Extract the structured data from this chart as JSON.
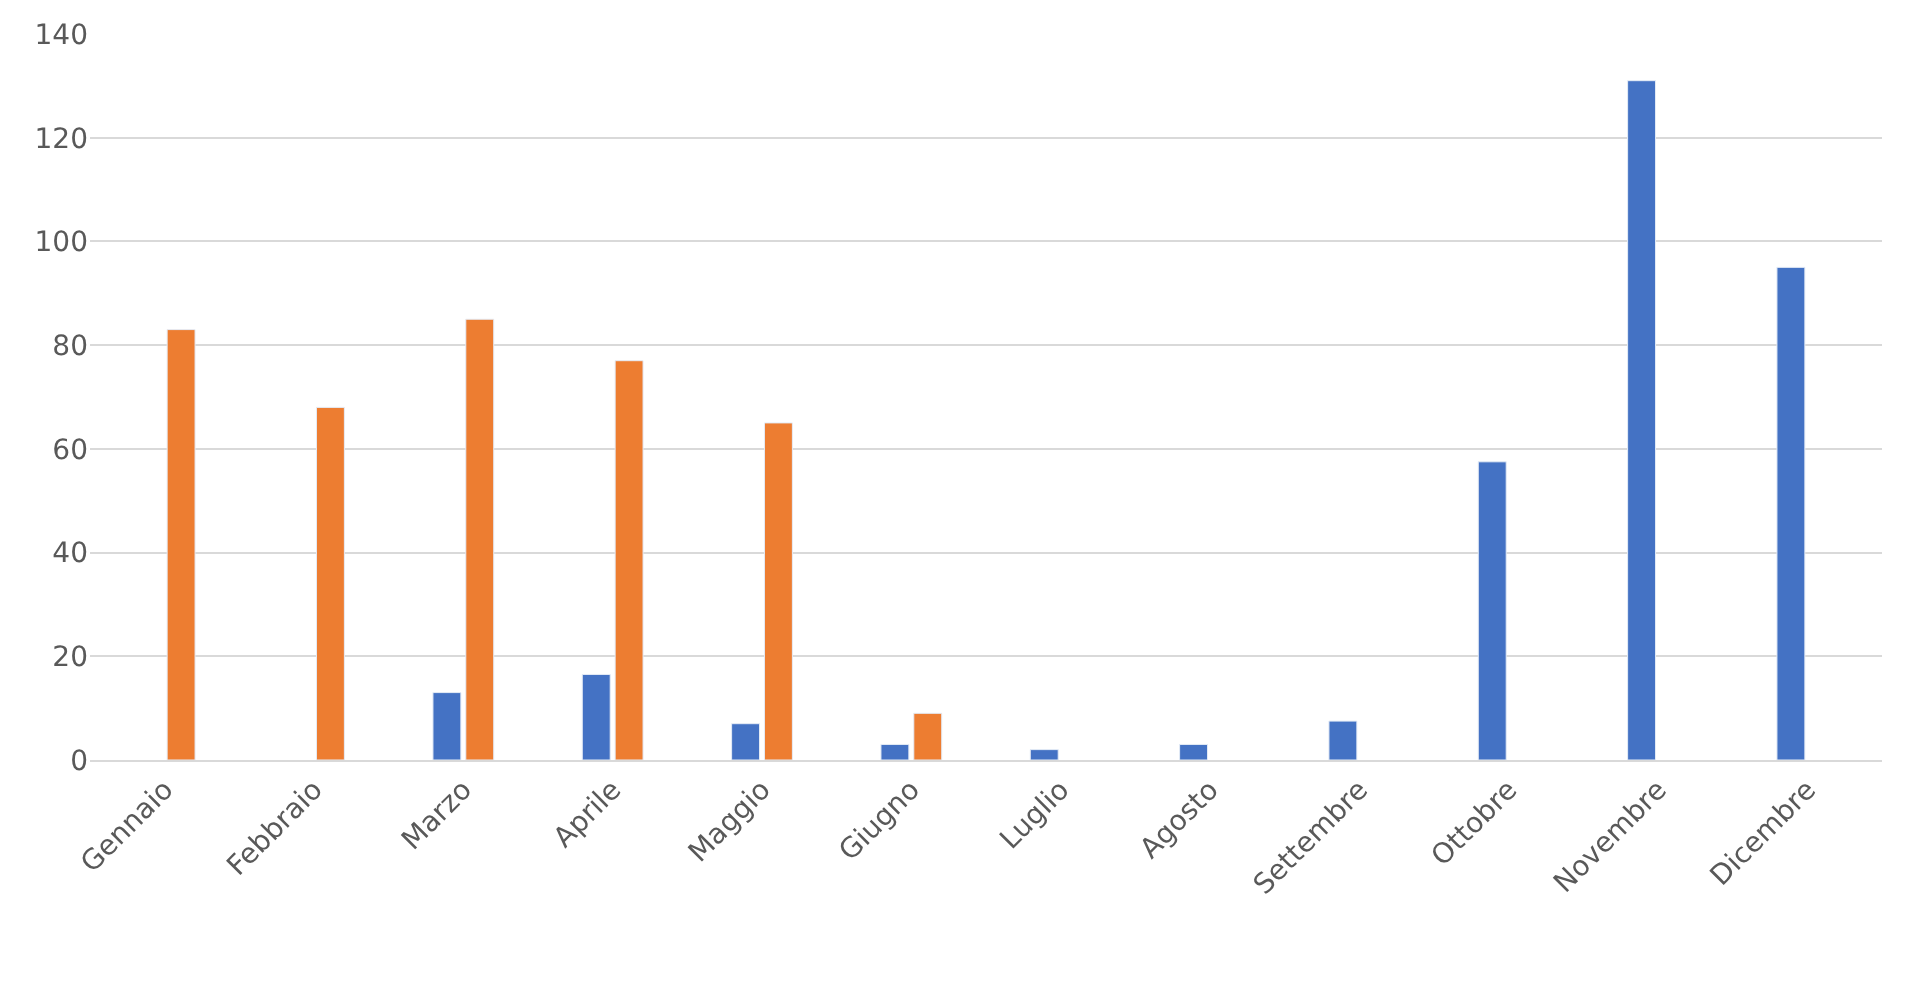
{
  "chart_data": {
    "type": "bar",
    "categories": [
      "Gennaio",
      "Febbraio",
      "Marzo",
      "Aprile",
      "Maggio",
      "Giugno",
      "Luglio",
      "Agosto",
      "Settembre",
      "Ottobre",
      "Novembre",
      "Dicembre"
    ],
    "series": [
      {
        "color": "#4472c4",
        "values": [
          null,
          null,
          13,
          16.5,
          7,
          3,
          2,
          3,
          7.5,
          57.5,
          131,
          95
        ]
      },
      {
        "color": "#ed7d31",
        "values": [
          83,
          68,
          85,
          77,
          65,
          9,
          null,
          null,
          null,
          null,
          null,
          null
        ]
      }
    ],
    "ylim": [
      0,
      140
    ],
    "yticks": [
      0,
      20,
      40,
      60,
      80,
      100,
      120,
      140
    ],
    "grid": "y"
  }
}
